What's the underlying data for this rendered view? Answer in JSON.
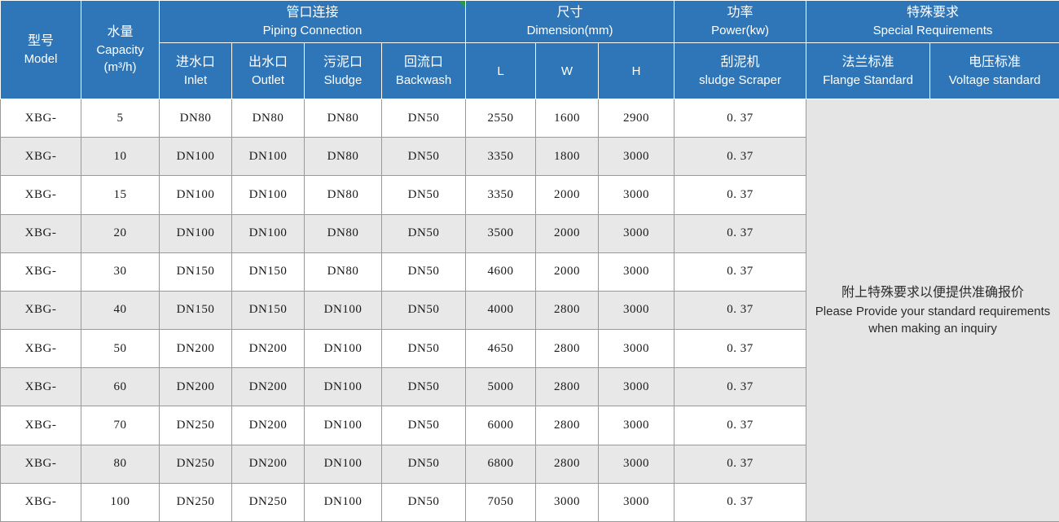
{
  "table": {
    "headers": {
      "model": {
        "zh": "型号",
        "en": "Model"
      },
      "capacity": {
        "zh": "水量",
        "en": "Capacity",
        "en2": "(m³/h)"
      },
      "piping": {
        "zh": "管口连接",
        "en": "Piping Connection"
      },
      "inlet": {
        "zh": "进水口",
        "en": "Inlet"
      },
      "outlet": {
        "zh": "出水口",
        "en": "Outlet"
      },
      "sludge": {
        "zh": "污泥口",
        "en": "Sludge"
      },
      "backwash": {
        "zh": "回流口",
        "en": "Backwash"
      },
      "dimension": {
        "zh": "尺寸",
        "en": "Dimension(mm)"
      },
      "l": "L",
      "w": "W",
      "h": "H",
      "power": {
        "zh": "功率",
        "en": "Power(kw)"
      },
      "scraper": {
        "zh": "刮泥机",
        "en": "sludge Scraper"
      },
      "special": {
        "zh": "特殊要求",
        "en": "Special Requirements"
      },
      "flange": {
        "zh": "法兰标准",
        "en": "Flange Standard"
      },
      "voltage": {
        "zh": "电压标准",
        "en": "Voltage standard"
      }
    },
    "rows": [
      {
        "model": "XBG-",
        "capacity": "5",
        "inlet": "DN80",
        "outlet": "DN80",
        "sludge": "DN80",
        "backwash": "DN50",
        "l": "2550",
        "w": "1600",
        "h": "2900",
        "power": "0. 37"
      },
      {
        "model": "XBG-",
        "capacity": "10",
        "inlet": "DN100",
        "outlet": "DN100",
        "sludge": "DN80",
        "backwash": "DN50",
        "l": "3350",
        "w": "1800",
        "h": "3000",
        "power": "0. 37"
      },
      {
        "model": "XBG-",
        "capacity": "15",
        "inlet": "DN100",
        "outlet": "DN100",
        "sludge": "DN80",
        "backwash": "DN50",
        "l": "3350",
        "w": "2000",
        "h": "3000",
        "power": "0. 37"
      },
      {
        "model": "XBG-",
        "capacity": "20",
        "inlet": "DN100",
        "outlet": "DN100",
        "sludge": "DN80",
        "backwash": "DN50",
        "l": "3500",
        "w": "2000",
        "h": "3000",
        "power": "0. 37"
      },
      {
        "model": "XBG-",
        "capacity": "30",
        "inlet": "DN150",
        "outlet": "DN150",
        "sludge": "DN80",
        "backwash": "DN50",
        "l": "4600",
        "w": "2000",
        "h": "3000",
        "power": "0. 37"
      },
      {
        "model": "XBG-",
        "capacity": "40",
        "inlet": "DN150",
        "outlet": "DN150",
        "sludge": "DN100",
        "backwash": "DN50",
        "l": "4000",
        "w": "2800",
        "h": "3000",
        "power": "0. 37"
      },
      {
        "model": "XBG-",
        "capacity": "50",
        "inlet": "DN200",
        "outlet": "DN200",
        "sludge": "DN100",
        "backwash": "DN50",
        "l": "4650",
        "w": "2800",
        "h": "3000",
        "power": "0. 37"
      },
      {
        "model": "XBG-",
        "capacity": "60",
        "inlet": "DN200",
        "outlet": "DN200",
        "sludge": "DN100",
        "backwash": "DN50",
        "l": "5000",
        "w": "2800",
        "h": "3000",
        "power": "0. 37"
      },
      {
        "model": "XBG-",
        "capacity": "70",
        "inlet": "DN250",
        "outlet": "DN200",
        "sludge": "DN100",
        "backwash": "DN50",
        "l": "6000",
        "w": "2800",
        "h": "3000",
        "power": "0. 37"
      },
      {
        "model": "XBG-",
        "capacity": "80",
        "inlet": "DN250",
        "outlet": "DN200",
        "sludge": "DN100",
        "backwash": "DN50",
        "l": "6800",
        "w": "2800",
        "h": "3000",
        "power": "0. 37"
      },
      {
        "model": "XBG-",
        "capacity": "100",
        "inlet": "DN250",
        "outlet": "DN250",
        "sludge": "DN100",
        "backwash": "DN50",
        "l": "7050",
        "w": "3000",
        "h": "3000",
        "power": "0. 37"
      }
    ],
    "note": {
      "zh": "附上特殊要求以便提供准确报价",
      "en1": "Please Provide your standard requirements",
      "en2": "when making an inquiry"
    },
    "colors": {
      "header_bg": "#2f76b8",
      "header_border": "rgba(255,255,255,0.45)",
      "row_stripe": "#e8e8e8",
      "note_panel_bg": "#e5e5e5",
      "data_border": "#999999",
      "corner_marker_green": "#21a038"
    }
  }
}
